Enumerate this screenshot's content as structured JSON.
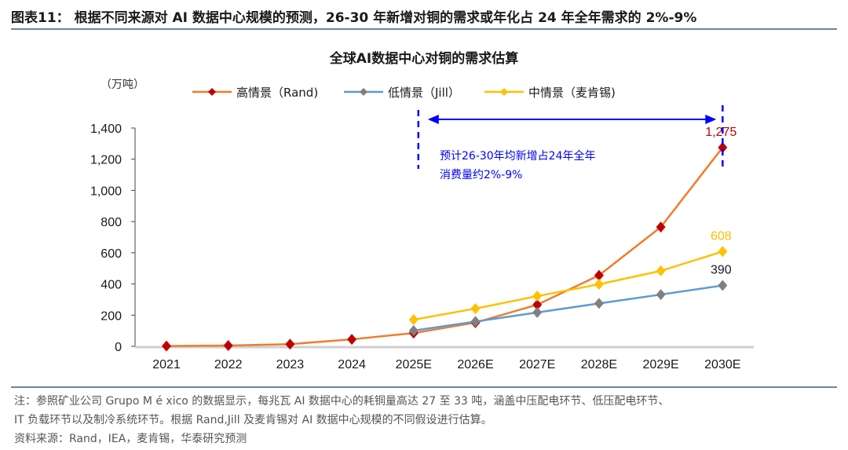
{
  "header": {
    "title": "图表11：  根据不同来源对 AI 数据中心规模的预测，26-30 年新增对铜的需求或年化占 24 年全年需求的 2%-9%"
  },
  "chart_data": {
    "type": "line",
    "title": "全球AI数据中心对铜的需求估算",
    "ylabel": "（万吨）",
    "categories": [
      "2021",
      "2022",
      "2023",
      "2024",
      "2025E",
      "2026E",
      "2027E",
      "2028E",
      "2029E",
      "2030E"
    ],
    "ylim": [
      0,
      1400
    ],
    "yticks": [
      0,
      200,
      400,
      600,
      800,
      1000,
      1200,
      1400
    ],
    "ytick_labels": [
      "0",
      "200",
      "400",
      "600",
      "800",
      "1,000",
      "1,200",
      "1,400"
    ],
    "legend_position": "top",
    "grid": false,
    "series": [
      {
        "name": "高情景（Rand)",
        "line_color": "#ED7D31",
        "marker_color": "#C00000",
        "values": [
          2,
          5,
          14,
          45,
          85,
          152,
          267,
          455,
          765,
          1275
        ],
        "end_label": "1,275",
        "end_label_color": "#C00000"
      },
      {
        "name": "低情景（Jill）",
        "line_color": "#5B9BD5",
        "marker_color": "#808080",
        "values": [
          null,
          null,
          null,
          null,
          101,
          159,
          217,
          275,
          332,
          390
        ],
        "end_label": "390",
        "end_label_color": "#1a1a1a"
      },
      {
        "name": "中情景（麦肯锡)",
        "line_color": "#FFC000",
        "marker_color": "#FFC000",
        "values": [
          null,
          null,
          null,
          null,
          171,
          242,
          322,
          398,
          484,
          608
        ],
        "end_label": "608",
        "end_label_color": "#FFC000"
      }
    ],
    "annotation": {
      "lines": [
        "预计26-30年均新增占24年全年",
        "消费量约2%-9%"
      ],
      "color": "#0000FF",
      "from": "2025E",
      "to": "2030E"
    }
  },
  "notes": [
    "注：参照矿业公司 Grupo M é xico 的数据显示，每兆瓦 AI 数据中心的耗铜量高达 27 至 33 吨，涵盖中压配电环节、低压配电环节、",
    "IT 负载环节以及制冷系统环节。根据 Rand,Jill 及麦肯锡对 AI 数据中心规模的不同假设进行估算。",
    "资料来源：Rand，IEA，麦肯锡，华泰研究预测"
  ]
}
